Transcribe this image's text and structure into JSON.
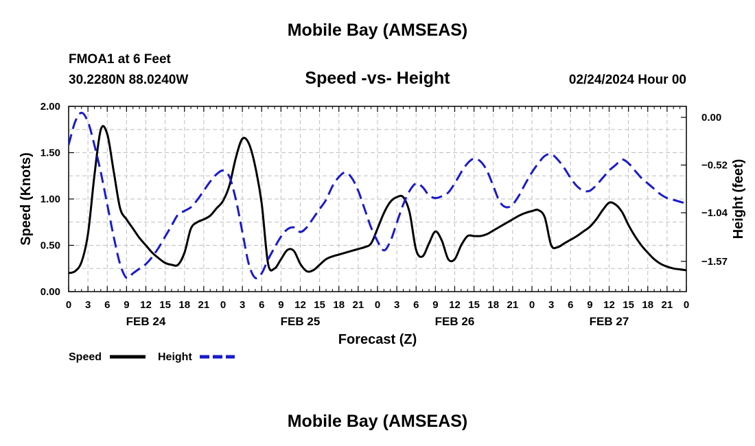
{
  "header": {
    "title": "Mobile Bay (AMSEAS)",
    "station": "FMOA1 at 6 Feet",
    "coords": "30.2280N  88.0240W",
    "subtitle": "Speed -vs- Height",
    "datetime": "02/24/2024 Hour 00"
  },
  "footer": {
    "title": "Mobile Bay (AMSEAS)"
  },
  "colors": {
    "speed": "#000000",
    "height": "#1a1acc",
    "grid": "#bdbdbd"
  },
  "chart_data": {
    "type": "line",
    "xlabel": "Forecast (Z)",
    "ylabel": "Speed (Knots)",
    "y2label": "Height (feet)",
    "xlim": [
      0,
      96
    ],
    "ylim": [
      0,
      2
    ],
    "y2lim": [
      -1.9,
      0.12
    ],
    "xticks": [
      0,
      3,
      6,
      9,
      12,
      15,
      18,
      21,
      24,
      27,
      30,
      33,
      36,
      39,
      42,
      45,
      48,
      51,
      54,
      57,
      60,
      63,
      66,
      69,
      72,
      75,
      78,
      81,
      84,
      87,
      90,
      93,
      96
    ],
    "xtick_labels": [
      "0",
      "3",
      "6",
      "9",
      "12",
      "15",
      "18",
      "21",
      "0",
      "3",
      "6",
      "9",
      "12",
      "15",
      "18",
      "21",
      "0",
      "3",
      "6",
      "9",
      "12",
      "15",
      "18",
      "21",
      "0",
      "3",
      "6",
      "9",
      "12",
      "15",
      "18",
      "21",
      "0"
    ],
    "yticks": [
      0,
      0.5,
      1.0,
      1.5,
      2.0
    ],
    "ytick_labels": [
      "0.00",
      "0.50",
      "1.00",
      "1.50",
      "2.00"
    ],
    "y2ticks": [
      0,
      -0.52,
      -1.04,
      -1.57
    ],
    "y2tick_labels": [
      "0.00",
      "−0.52",
      "−1.04",
      "−1.57"
    ],
    "date_labels": [
      {
        "x": 12,
        "label": "FEB 24"
      },
      {
        "x": 36,
        "label": "FEB 25"
      },
      {
        "x": 60,
        "label": "FEB 26"
      },
      {
        "x": 84,
        "label": "FEB 27"
      }
    ],
    "grid": true,
    "legend_position": "bottom-left",
    "series": [
      {
        "name": "Speed",
        "axis": "left",
        "style": "solid",
        "x": [
          0,
          1,
          2,
          3,
          4,
          5,
          6,
          7,
          8,
          9,
          10,
          11,
          12,
          13,
          14,
          15,
          16,
          17,
          18,
          19,
          20,
          21,
          22,
          23,
          24,
          25,
          26,
          27,
          28,
          29,
          30,
          31,
          32,
          33,
          34,
          35,
          36,
          37,
          38,
          39,
          40,
          41,
          42,
          43,
          44,
          45,
          46,
          47,
          48,
          49,
          50,
          51,
          52,
          53,
          54,
          55,
          56,
          57,
          58,
          59,
          60,
          61,
          62,
          63,
          64,
          65,
          66,
          67,
          68,
          69,
          70,
          71,
          72,
          73,
          74,
          75,
          76,
          77,
          78,
          79,
          80,
          81,
          82,
          83,
          84,
          85,
          86,
          87,
          88,
          89,
          90,
          91,
          92,
          93,
          94,
          95,
          96
        ],
        "values": [
          0.2,
          0.22,
          0.32,
          0.62,
          1.25,
          1.75,
          1.7,
          1.3,
          0.9,
          0.78,
          0.68,
          0.58,
          0.5,
          0.42,
          0.36,
          0.31,
          0.29,
          0.29,
          0.42,
          0.68,
          0.75,
          0.78,
          0.82,
          0.9,
          0.98,
          1.15,
          1.45,
          1.65,
          1.6,
          1.35,
          0.95,
          0.3,
          0.25,
          0.35,
          0.45,
          0.44,
          0.3,
          0.22,
          0.23,
          0.29,
          0.35,
          0.38,
          0.4,
          0.42,
          0.44,
          0.46,
          0.48,
          0.52,
          0.68,
          0.85,
          0.97,
          1.02,
          1.02,
          0.85,
          0.45,
          0.38,
          0.52,
          0.65,
          0.55,
          0.35,
          0.35,
          0.5,
          0.6,
          0.6,
          0.6,
          0.62,
          0.66,
          0.7,
          0.74,
          0.78,
          0.82,
          0.85,
          0.87,
          0.88,
          0.8,
          0.5,
          0.48,
          0.52,
          0.56,
          0.6,
          0.65,
          0.7,
          0.78,
          0.88,
          0.96,
          0.94,
          0.86,
          0.72,
          0.6,
          0.5,
          0.42,
          0.35,
          0.3,
          0.27,
          0.25,
          0.24,
          0.23
        ],
        "x_visible_max": 96
      },
      {
        "name": "Height",
        "axis": "right",
        "style": "dashed",
        "x": [
          0,
          1,
          2,
          3,
          4,
          5,
          6,
          7,
          8,
          9,
          10,
          11,
          12,
          13,
          14,
          15,
          16,
          17,
          18,
          19,
          20,
          21,
          22,
          23,
          24,
          25,
          26,
          27,
          28,
          29,
          30,
          31,
          32,
          33,
          34,
          35,
          36,
          37,
          38,
          39,
          40,
          41,
          42,
          43,
          44,
          45,
          46,
          47,
          48,
          49,
          50,
          51,
          52,
          53,
          54,
          55,
          56,
          57,
          58,
          59,
          60,
          61,
          62,
          63,
          64,
          65,
          66,
          67,
          68,
          69,
          70,
          71,
          72,
          73,
          74,
          75,
          76,
          77,
          78,
          79,
          80,
          81,
          82,
          83,
          84,
          85,
          86,
          87,
          88,
          89,
          90,
          91,
          92,
          93,
          94,
          95,
          96
        ],
        "values": [
          -0.3,
          -0.05,
          0.05,
          -0.05,
          -0.3,
          -0.6,
          -0.95,
          -1.3,
          -1.6,
          -1.75,
          -1.7,
          -1.65,
          -1.6,
          -1.52,
          -1.42,
          -1.3,
          -1.18,
          -1.06,
          -1.02,
          -0.98,
          -0.9,
          -0.8,
          -0.7,
          -0.62,
          -0.58,
          -0.65,
          -0.9,
          -1.25,
          -1.6,
          -1.75,
          -1.7,
          -1.55,
          -1.42,
          -1.3,
          -1.22,
          -1.2,
          -1.25,
          -1.2,
          -1.1,
          -1.0,
          -0.9,
          -0.75,
          -0.65,
          -0.6,
          -0.66,
          -0.8,
          -1.0,
          -1.2,
          -1.35,
          -1.45,
          -1.35,
          -1.15,
          -0.95,
          -0.8,
          -0.72,
          -0.76,
          -0.85,
          -0.88,
          -0.86,
          -0.82,
          -0.72,
          -0.6,
          -0.5,
          -0.45,
          -0.48,
          -0.58,
          -0.75,
          -0.92,
          -0.98,
          -0.95,
          -0.85,
          -0.72,
          -0.6,
          -0.5,
          -0.42,
          -0.4,
          -0.46,
          -0.55,
          -0.66,
          -0.75,
          -0.8,
          -0.8,
          -0.74,
          -0.66,
          -0.58,
          -0.52,
          -0.46,
          -0.5,
          -0.58,
          -0.66,
          -0.72,
          -0.78,
          -0.84,
          -0.88,
          -0.9,
          -0.92,
          -0.94
        ],
        "x_visible_max": 96
      }
    ]
  }
}
